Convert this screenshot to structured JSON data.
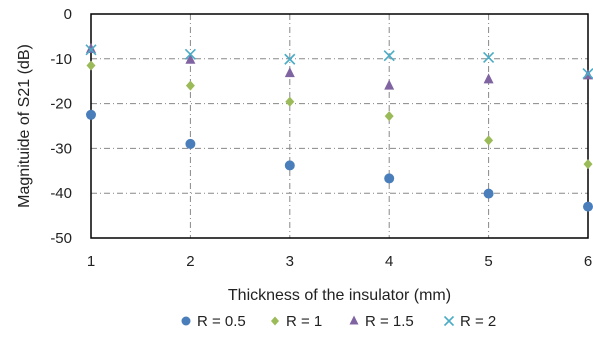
{
  "chart_data": {
    "type": "scatter",
    "xlabel": "Thickness of the insulator (mm)",
    "ylabel": "Magnituide of S21 (dB)",
    "xlim": [
      1,
      6
    ],
    "ylim": [
      -50,
      0
    ],
    "x_ticks": [
      "1",
      "2",
      "3",
      "4",
      "5",
      "6"
    ],
    "y_ticks": [
      "0",
      "-10",
      "-20",
      "-30",
      "-40",
      "-50"
    ],
    "grid": true,
    "legend_position": "bottom",
    "x": [
      1,
      2,
      3,
      4,
      5,
      6
    ],
    "series": [
      {
        "name": "R = 0.5",
        "marker": "circle",
        "color": "#4a7ebb",
        "values": [
          -22.5,
          -29,
          -33.8,
          -36.7,
          -40.1,
          -43
        ]
      },
      {
        "name": "R = 1",
        "marker": "diamond",
        "color": "#9bbb59",
        "values": [
          -11.5,
          -16,
          -19.6,
          -22.8,
          -28.2,
          -33.5
        ]
      },
      {
        "name": "R = 1.5",
        "marker": "triangle",
        "color": "#8064a2",
        "values": [
          -7.8,
          -10.2,
          -13.2,
          -16,
          -14.6,
          -13.7
        ]
      },
      {
        "name": "R = 2",
        "marker": "x",
        "color": "#4bacc6",
        "values": [
          -8,
          -9,
          -10.1,
          -9.3,
          -9.7,
          -13.3
        ]
      }
    ]
  }
}
